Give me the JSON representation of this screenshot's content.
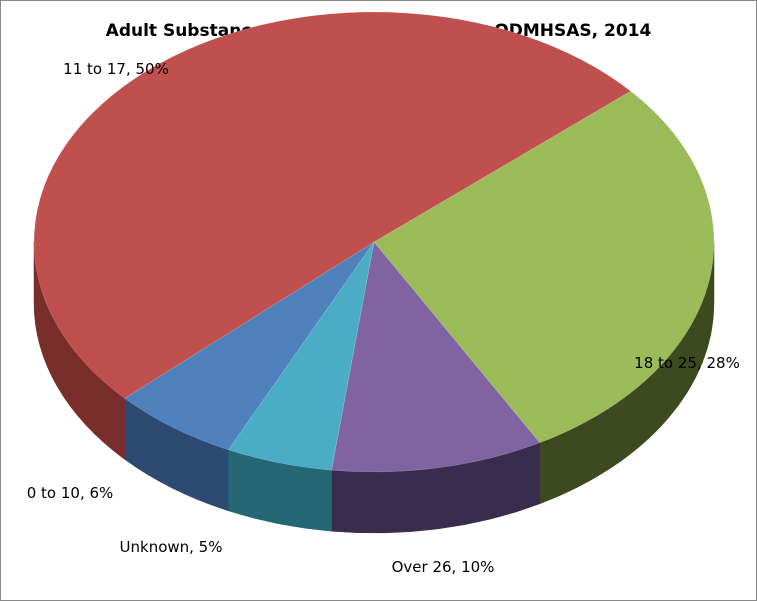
{
  "chart_data": {
    "type": "pie",
    "title": "Adult Substance Users Age of First Use, ODMHSAS, 2014",
    "slices": [
      {
        "label": "18 to 25",
        "value": 28,
        "display": "18 to 25, 28%",
        "color": "#9BBB59",
        "side": "#3D4A20"
      },
      {
        "label": "Over 26",
        "value": 10,
        "display": "Over 26, 10%",
        "color": "#8064A2",
        "side": "#3A2C4C"
      },
      {
        "label": "Unknown",
        "value": 5,
        "display": "Unknown, 5%",
        "color": "#4BACC6",
        "side": "#256775"
      },
      {
        "label": "0 to 10",
        "value": 6,
        "display": "0 to 10, 6%",
        "color": "#4F81BD",
        "side": "#2C4A72"
      },
      {
        "label": "11 to 17",
        "value": 50,
        "display": "11 to 17, 50%",
        "color": "#C0504D",
        "side": "#7A2E2C"
      }
    ],
    "style": "3d-pie",
    "legend": "none"
  }
}
